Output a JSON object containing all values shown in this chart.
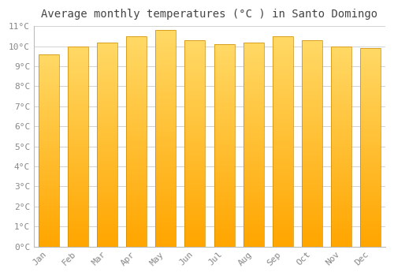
{
  "months": [
    "Jan",
    "Feb",
    "Mar",
    "Apr",
    "May",
    "Jun",
    "Jul",
    "Aug",
    "Sep",
    "Oct",
    "Nov",
    "Dec"
  ],
  "values": [
    9.6,
    10.0,
    10.2,
    10.5,
    10.8,
    10.3,
    10.1,
    10.2,
    10.5,
    10.3,
    10.0,
    9.9
  ],
  "bar_color_top": "#FFD966",
  "bar_color_bottom": "#FFA500",
  "bar_edge_color": "#CC8800",
  "title": "Average monthly temperatures (°C ) in Santo Domingo",
  "ylim": [
    0,
    11
  ],
  "yticks": [
    0,
    1,
    2,
    3,
    4,
    5,
    6,
    7,
    8,
    9,
    10,
    11
  ],
  "background_color": "#FFFFFF",
  "plot_bg_color": "#FFFFFF",
  "grid_color": "#CCCCCC",
  "title_fontsize": 10,
  "tick_fontsize": 8,
  "tick_color": "#888888",
  "font_family": "monospace",
  "bar_width": 0.7
}
